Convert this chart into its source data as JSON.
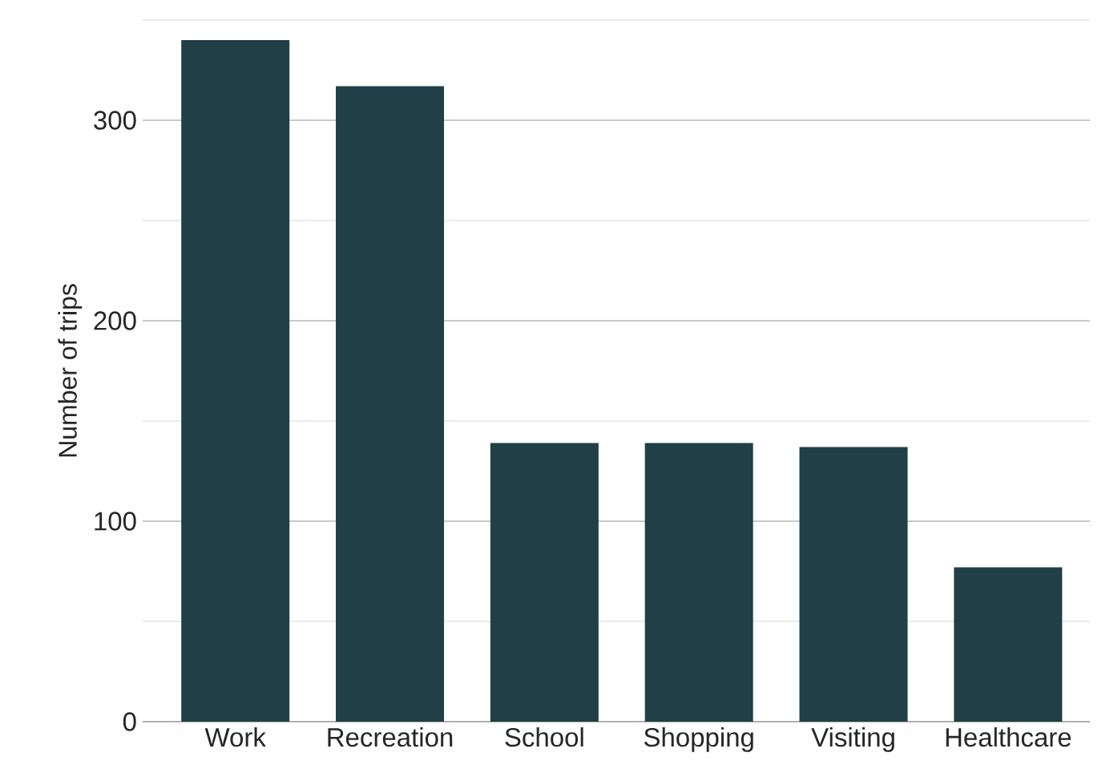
{
  "chart_data": {
    "type": "bar",
    "ylabel": "Number of trips",
    "categories": [
      "Work",
      "Recreation",
      "School",
      "Shopping",
      "Visiting",
      "Healthcare"
    ],
    "values": [
      340,
      317,
      139,
      139,
      137,
      77
    ],
    "color": "#203f47",
    "ylim": [
      0,
      350
    ],
    "yticks": [
      0,
      {
        "value": 50,
        "label": null
      },
      100,
      {
        "value": 150,
        "label": null
      },
      200,
      {
        "value": 250,
        "label": null
      },
      300,
      {
        "value": 350,
        "label": null
      }
    ],
    "grid": "y"
  }
}
